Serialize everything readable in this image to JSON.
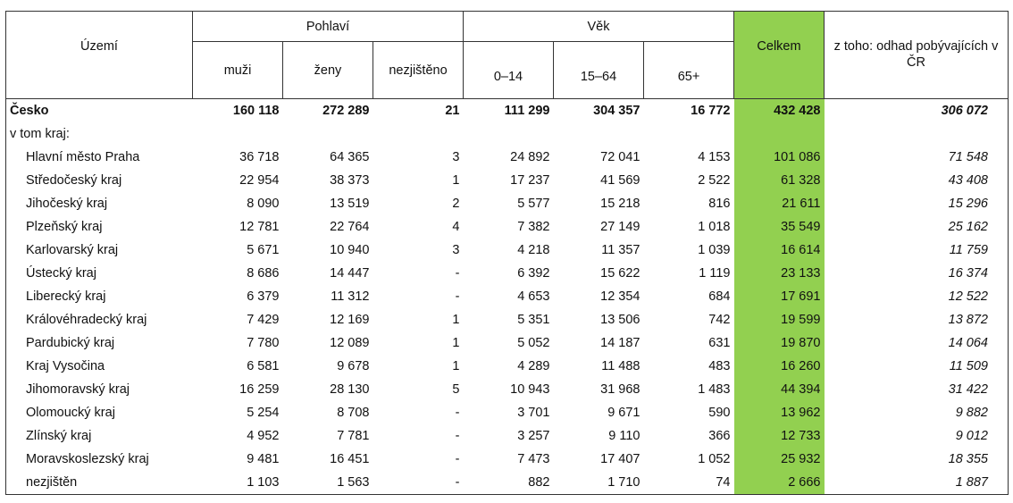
{
  "header": {
    "uzemi": "Území",
    "pohlavi": "Pohlaví",
    "vek": "Věk",
    "celkem": "Celkem",
    "odhad": "z toho: odhad pobývajících v ČR",
    "muzi": "muži",
    "zeny": "ženy",
    "nezjisteno": "nezjištěno",
    "age_0_14": "0–14",
    "age_15_64": "15–64",
    "age_65": "65+"
  },
  "total": {
    "name": "Česko",
    "muzi": "160 118",
    "zeny": "272 289",
    "nezjisteno": "21",
    "age_0_14": "111 299",
    "age_15_64": "304 357",
    "age_65": "16 772",
    "celkem": "432 428",
    "odhad": "306 072"
  },
  "section_label": "v tom kraj:",
  "rows": [
    {
      "name": "Hlavní město Praha",
      "muzi": "36 718",
      "zeny": "64 365",
      "nezjisteno": "3",
      "age_0_14": "24 892",
      "age_15_64": "72 041",
      "age_65": "4 153",
      "celkem": "101 086",
      "odhad": "71 548"
    },
    {
      "name": "Středočeský kraj",
      "muzi": "22 954",
      "zeny": "38 373",
      "nezjisteno": "1",
      "age_0_14": "17 237",
      "age_15_64": "41 569",
      "age_65": "2 522",
      "celkem": "61 328",
      "odhad": "43 408"
    },
    {
      "name": "Jihočeský kraj",
      "muzi": "8 090",
      "zeny": "13 519",
      "nezjisteno": "2",
      "age_0_14": "5 577",
      "age_15_64": "15 218",
      "age_65": "816",
      "celkem": "21 611",
      "odhad": "15 296"
    },
    {
      "name": "Plzeňský kraj",
      "muzi": "12 781",
      "zeny": "22 764",
      "nezjisteno": "4",
      "age_0_14": "7 382",
      "age_15_64": "27 149",
      "age_65": "1 018",
      "celkem": "35 549",
      "odhad": "25 162"
    },
    {
      "name": "Karlovarský kraj",
      "muzi": "5 671",
      "zeny": "10 940",
      "nezjisteno": "3",
      "age_0_14": "4 218",
      "age_15_64": "11 357",
      "age_65": "1 039",
      "celkem": "16 614",
      "odhad": "11 759"
    },
    {
      "name": "Ústecký kraj",
      "muzi": "8 686",
      "zeny": "14 447",
      "nezjisteno": "-",
      "age_0_14": "6 392",
      "age_15_64": "15 622",
      "age_65": "1 119",
      "celkem": "23 133",
      "odhad": "16 374"
    },
    {
      "name": "Liberecký kraj",
      "muzi": "6 379",
      "zeny": "11 312",
      "nezjisteno": "-",
      "age_0_14": "4 653",
      "age_15_64": "12 354",
      "age_65": "684",
      "celkem": "17 691",
      "odhad": "12 522"
    },
    {
      "name": "Královéhradecký kraj",
      "muzi": "7 429",
      "zeny": "12 169",
      "nezjisteno": "1",
      "age_0_14": "5 351",
      "age_15_64": "13 506",
      "age_65": "742",
      "celkem": "19 599",
      "odhad": "13 872"
    },
    {
      "name": "Pardubický kraj",
      "muzi": "7 780",
      "zeny": "12 089",
      "nezjisteno": "1",
      "age_0_14": "5 052",
      "age_15_64": "14 187",
      "age_65": "631",
      "celkem": "19 870",
      "odhad": "14 064"
    },
    {
      "name": "Kraj Vysočina",
      "muzi": "6 581",
      "zeny": "9 678",
      "nezjisteno": "1",
      "age_0_14": "4 289",
      "age_15_64": "11 488",
      "age_65": "483",
      "celkem": "16 260",
      "odhad": "11 509"
    },
    {
      "name": "Jihomoravský kraj",
      "muzi": "16 259",
      "zeny": "28 130",
      "nezjisteno": "5",
      "age_0_14": "10 943",
      "age_15_64": "31 968",
      "age_65": "1 483",
      "celkem": "44 394",
      "odhad": "31 422"
    },
    {
      "name": "Olomoucký kraj",
      "muzi": "5 254",
      "zeny": "8 708",
      "nezjisteno": "-",
      "age_0_14": "3 701",
      "age_15_64": "9 671",
      "age_65": "590",
      "celkem": "13 962",
      "odhad": "9 882"
    },
    {
      "name": "Zlínský kraj",
      "muzi": "4 952",
      "zeny": "7 781",
      "nezjisteno": "-",
      "age_0_14": "3 257",
      "age_15_64": "9 110",
      "age_65": "366",
      "celkem": "12 733",
      "odhad": "9 012"
    },
    {
      "name": "Moravskoslezský kraj",
      "muzi": "9 481",
      "zeny": "16 451",
      "nezjisteno": "-",
      "age_0_14": "7 473",
      "age_15_64": "17 407",
      "age_65": "1 052",
      "celkem": "25 932",
      "odhad": "18 355"
    },
    {
      "name": "nezjištěn",
      "muzi": "1 103",
      "zeny": "1 563",
      "nezjisteno": "-",
      "age_0_14": "882",
      "age_15_64": "1 710",
      "age_65": "74",
      "celkem": "2 666",
      "odhad": "1 887"
    }
  ],
  "colors": {
    "highlight": "#92d050",
    "border": "#333333"
  }
}
